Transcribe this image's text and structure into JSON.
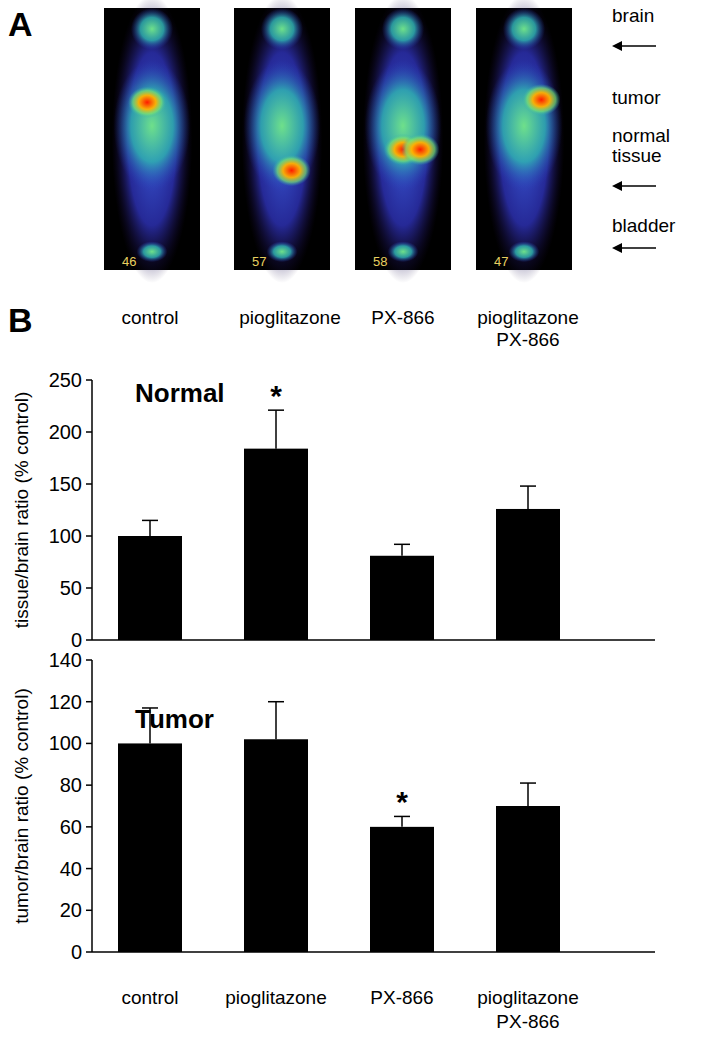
{
  "panel_a": {
    "label": "A",
    "images": [
      {
        "caption": "control",
        "number": 46
      },
      {
        "caption": "pioglitazone",
        "number": 57
      },
      {
        "caption": "PX-866",
        "number": 58
      },
      {
        "caption": "pioglitazone\nPX-866",
        "number": 47
      }
    ],
    "regions": [
      "brain",
      "tumor",
      "normal\ntissue",
      "bladder"
    ]
  },
  "panel_b": {
    "label": "B"
  },
  "chart_data": [
    {
      "type": "bar",
      "title": "Normal",
      "y_label": "tissue/brain ratio (% control)",
      "categories": [
        null,
        null,
        null,
        null
      ],
      "values": [
        100,
        184,
        81,
        126
      ],
      "errors": [
        15,
        37,
        11,
        22
      ],
      "color": "#000000",
      "ylim": [
        0,
        250
      ],
      "yticks": [
        0,
        50,
        100,
        150,
        200,
        250
      ],
      "annotation": "*",
      "annotated": [
        false,
        true,
        false,
        false
      ]
    },
    {
      "type": "bar",
      "title": "Tumor",
      "y_label": "tumor/brain ratio (% control)",
      "categories": [
        "control",
        "pioglitazone",
        "PX-866",
        "pioglitazone\nPX-866"
      ],
      "values": [
        100,
        102,
        60,
        70
      ],
      "errors": [
        17,
        18,
        5,
        11
      ],
      "color": "#000000",
      "ylim": [
        0,
        140
      ],
      "yticks": [
        0,
        20,
        40,
        60,
        80,
        100,
        120,
        140
      ],
      "annotation": "*",
      "annotated": [
        false,
        false,
        true,
        false
      ]
    }
  ]
}
